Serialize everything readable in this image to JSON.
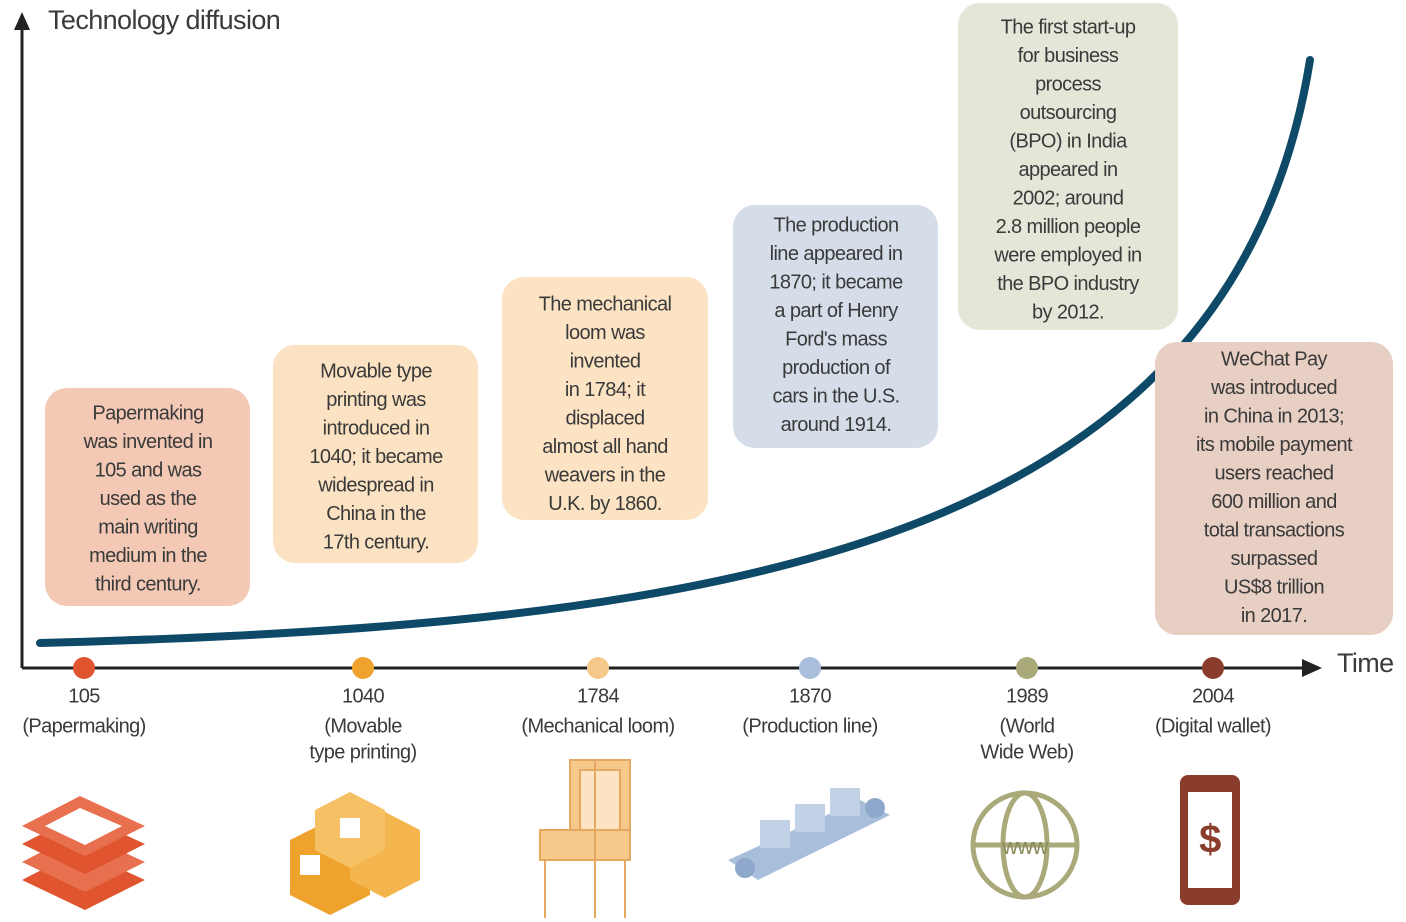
{
  "y_axis_label": "Technology diffusion",
  "x_axis_label": "Time",
  "milestones": [
    {
      "year": "105",
      "label": [
        "(Papermaking)"
      ],
      "text": [
        "Papermaking",
        "was invented in",
        "105 and was",
        "used as the",
        "main writing",
        "medium in the",
        "third century."
      ]
    },
    {
      "year": "1040",
      "label": [
        "(Movable",
        "type printing)"
      ],
      "text": [
        "Movable type",
        "printing was",
        "introduced in",
        "1040; it became",
        "widespread in",
        "China in the",
        "17th century."
      ]
    },
    {
      "year": "1784",
      "label": [
        "(Mechanical loom)"
      ],
      "text": [
        "The mechanical",
        "loom was",
        "invented",
        "in 1784; it",
        "displaced",
        "almost all hand",
        "weavers in the",
        "U.K. by 1860."
      ]
    },
    {
      "year": "1870",
      "label": [
        "(Production line)"
      ],
      "text": [
        "The production",
        "line appeared in",
        "1870; it became",
        "a part of Henry",
        "Ford's mass",
        "production of",
        "cars in the U.S.",
        "around 1914."
      ]
    },
    {
      "year": "1989",
      "label": [
        "(World",
        "Wide Web)"
      ],
      "text": [
        "The first start-up",
        "for business",
        "process",
        "outsourcing",
        "(BPO) in India",
        "appeared in",
        "2002; around",
        "2.8 million people",
        "were employed in",
        "the BPO industry",
        "by 2012."
      ]
    },
    {
      "year": "2004",
      "label": [
        "(Digital wallet)"
      ],
      "text": [
        "WeChat Pay",
        "was introduced",
        "in China in 2013;",
        "its mobile payment",
        "users reached",
        "600 million and",
        "total transactions",
        "surpassed",
        "US$8 trillion",
        "in 2017."
      ]
    }
  ]
}
